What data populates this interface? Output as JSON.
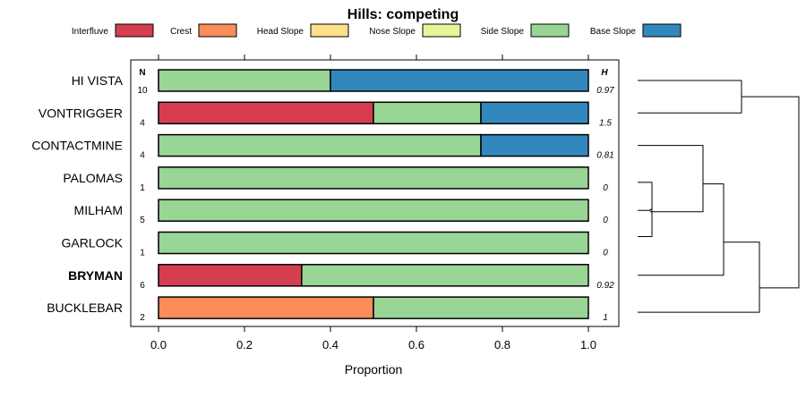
{
  "chart_data": {
    "type": "bar",
    "orientation": "horizontal",
    "stacked": true,
    "title": "Hills: competing",
    "xlabel": "Proportion",
    "xlim": [
      0,
      1
    ],
    "xticks": [
      "0.0",
      "0.2",
      "0.4",
      "0.6",
      "0.8",
      "1.0"
    ],
    "legend": {
      "position": "top",
      "entries": [
        {
          "label": "Interfluve",
          "color": "#D53E4F"
        },
        {
          "label": "Crest",
          "color": "#FC8D59"
        },
        {
          "label": "Head Slope",
          "color": "#FEE08B"
        },
        {
          "label": "Nose Slope",
          "color": "#E6F598"
        },
        {
          "label": "Side Slope",
          "color": "#99D594"
        },
        {
          "label": "Base Slope",
          "color": "#3288BD"
        }
      ]
    },
    "n_header": "N",
    "h_header": "H",
    "categories": [
      {
        "label": "HI VISTA",
        "bold": false,
        "n": "10",
        "h": "0.97",
        "values": [
          0,
          0,
          0,
          0,
          0.4,
          0.6
        ]
      },
      {
        "label": "VONTRIGGER",
        "bold": false,
        "n": "4",
        "h": "1.5",
        "values": [
          0.5,
          0,
          0,
          0,
          0.25,
          0.25
        ]
      },
      {
        "label": "CONTACTMINE",
        "bold": false,
        "n": "4",
        "h": "0.81",
        "values": [
          0,
          0,
          0,
          0,
          0.75,
          0.25
        ]
      },
      {
        "label": "PALOMAS",
        "bold": false,
        "n": "1",
        "h": "0",
        "values": [
          0,
          0,
          0,
          0,
          1,
          0
        ]
      },
      {
        "label": "MILHAM",
        "bold": false,
        "n": "5",
        "h": "0",
        "values": [
          0,
          0,
          0,
          0,
          1,
          0
        ]
      },
      {
        "label": "GARLOCK",
        "bold": false,
        "n": "1",
        "h": "0",
        "values": [
          0,
          0,
          0,
          0,
          1,
          0
        ]
      },
      {
        "label": "BRYMAN",
        "bold": true,
        "n": "6",
        "h": "0.92",
        "values": [
          0.333,
          0,
          0,
          0,
          0.667,
          0
        ]
      },
      {
        "label": "BUCKLEBAR",
        "bold": false,
        "n": "2",
        "h": "1",
        "values": [
          0,
          0.5,
          0,
          0,
          0.5,
          0
        ]
      }
    ],
    "dendrogram": {
      "note": "hierarchical clustering of profiles",
      "merges": [
        {
          "a": "PALOMAS",
          "b": "GARLOCK",
          "height": 0.05
        },
        {
          "a": "MILHAM",
          "b": "PALOMAS+GARLOCK",
          "height": 0.06
        },
        {
          "a": "CONTACTMINE",
          "b": "MILHAM+PALOMAS+GARLOCK",
          "height": 0.25
        },
        {
          "a": "BRYMAN",
          "b": "CONTACTMINE+MILHAM+PALOMAS+GARLOCK",
          "height": 0.3
        },
        {
          "a": "BUCKLEBAR",
          "b": "BRYMAN+CONTACTMINE+MILHAM+PALOMAS+GARLOCK",
          "height": 0.5
        },
        {
          "a": "HI VISTA",
          "b": "VONTRIGGER",
          "height": 0.4
        },
        {
          "a": "HI VISTA+VONTRIGGER",
          "b": "rest",
          "height": 0.65
        }
      ]
    }
  }
}
